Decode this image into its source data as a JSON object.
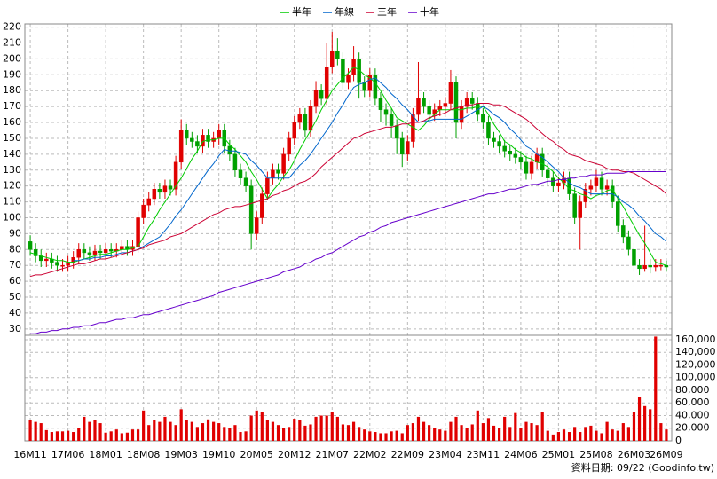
{
  "chart_data": [
    {
      "type": "candlestick",
      "categories": [
        "16M11",
        null,
        null,
        null,
        null,
        null,
        null,
        "17M06",
        null,
        null,
        null,
        null,
        null,
        null,
        "18M01",
        null,
        null,
        null,
        null,
        null,
        null,
        "18M08",
        null,
        null,
        null,
        null,
        null,
        null,
        "19M03",
        null,
        null,
        null,
        null,
        null,
        null,
        "19M10",
        null,
        null,
        null,
        null,
        null,
        null,
        "20M05",
        null,
        null,
        null,
        null,
        null,
        null,
        "20M12",
        null,
        null,
        null,
        null,
        null,
        null,
        "21M07",
        null,
        null,
        null,
        null,
        null,
        null,
        "22M02",
        null,
        null,
        null,
        null,
        null,
        null,
        "22M09",
        null,
        null,
        null,
        null,
        null,
        null,
        "23M04",
        null,
        null,
        null,
        null,
        null,
        null,
        "23M11",
        null,
        null,
        null,
        null,
        null,
        null,
        "24M06",
        null,
        null,
        null,
        null,
        null,
        null,
        "25M01",
        null,
        null,
        null,
        null,
        null,
        null,
        "25M08",
        null,
        null,
        null,
        null,
        null,
        null,
        "26M03",
        null,
        null,
        null,
        null,
        null,
        "26M09"
      ],
      "open": [
        85,
        80,
        76,
        73,
        74,
        72,
        70,
        70,
        72,
        75,
        80,
        78,
        77,
        79,
        78,
        80,
        79,
        80,
        82,
        80,
        82,
        100,
        108,
        112,
        118,
        116,
        120,
        118,
        135,
        155,
        150,
        148,
        145,
        152,
        148,
        150,
        155,
        145,
        140,
        130,
        125,
        120,
        90,
        100,
        115,
        125,
        130,
        128,
        140,
        150,
        160,
        165,
        155,
        170,
        180,
        175,
        195,
        205,
        200,
        185,
        190,
        200,
        185,
        180,
        190,
        175,
        168,
        165,
        158,
        150,
        140,
        148,
        165,
        175,
        170,
        165,
        168,
        170,
        172,
        185,
        160,
        170,
        175,
        172,
        165,
        160,
        150,
        148,
        145,
        142,
        140,
        138,
        135,
        128,
        135,
        140,
        130,
        125,
        120,
        122,
        125,
        115,
        100,
        110,
        118,
        120,
        125,
        118,
        120,
        110,
        95,
        88,
        80,
        70,
        68,
        70,
        69,
        70,
        70
      ],
      "high": [
        89,
        84,
        80,
        78,
        78,
        76,
        74,
        76,
        79,
        84,
        84,
        82,
        83,
        83,
        84,
        84,
        84,
        86,
        86,
        86,
        104,
        112,
        116,
        122,
        122,
        124,
        124,
        139,
        162,
        159,
        154,
        152,
        156,
        156,
        154,
        159,
        159,
        149,
        144,
        134,
        129,
        124,
        104,
        119,
        129,
        134,
        134,
        144,
        154,
        164,
        169,
        169,
        174,
        186,
        184,
        210,
        217,
        213,
        204,
        194,
        208,
        204,
        189,
        194,
        194,
        179,
        172,
        169,
        162,
        154,
        152,
        169,
        198,
        179,
        174,
        172,
        174,
        176,
        193,
        189,
        174,
        179,
        179,
        176,
        169,
        164,
        154,
        152,
        149,
        146,
        144,
        142,
        139,
        139,
        144,
        144,
        134,
        129,
        126,
        129,
        129,
        119,
        114,
        122,
        124,
        130,
        129,
        124,
        124,
        114,
        99,
        92,
        84,
        74,
        95,
        74,
        74,
        74,
        73
      ],
      "low": [
        76,
        72,
        69,
        69,
        68,
        66,
        66,
        66,
        68,
        71,
        74,
        73,
        73,
        74,
        74,
        75,
        75,
        76,
        76,
        76,
        78,
        96,
        104,
        108,
        112,
        112,
        114,
        114,
        131,
        146,
        144,
        141,
        141,
        144,
        144,
        146,
        141,
        136,
        126,
        121,
        116,
        80,
        86,
        96,
        111,
        121,
        124,
        124,
        136,
        146,
        156,
        151,
        151,
        166,
        171,
        171,
        191,
        196,
        181,
        181,
        186,
        175,
        176,
        176,
        171,
        160,
        158,
        150,
        140,
        132,
        136,
        144,
        161,
        166,
        161,
        161,
        164,
        166,
        168,
        150,
        156,
        166,
        168,
        161,
        156,
        146,
        144,
        141,
        138,
        136,
        134,
        131,
        124,
        124,
        131,
        126,
        121,
        116,
        116,
        118,
        111,
        96,
        80,
        106,
        114,
        116,
        114,
        114,
        106,
        91,
        84,
        76,
        66,
        64,
        66,
        65,
        66,
        67,
        66
      ],
      "close": [
        80,
        76,
        73,
        74,
        72,
        70,
        70,
        72,
        75,
        80,
        78,
        77,
        79,
        78,
        80,
        79,
        80,
        82,
        80,
        82,
        100,
        108,
        112,
        118,
        116,
        120,
        118,
        135,
        155,
        150,
        148,
        145,
        152,
        148,
        150,
        155,
        145,
        140,
        130,
        125,
        120,
        90,
        100,
        115,
        125,
        130,
        128,
        140,
        150,
        160,
        165,
        155,
        170,
        180,
        175,
        195,
        205,
        200,
        185,
        190,
        200,
        185,
        180,
        190,
        175,
        168,
        165,
        158,
        150,
        140,
        148,
        165,
        175,
        170,
        165,
        168,
        170,
        172,
        185,
        160,
        170,
        175,
        172,
        165,
        160,
        150,
        148,
        145,
        142,
        140,
        138,
        135,
        128,
        135,
        140,
        130,
        125,
        120,
        122,
        125,
        115,
        100,
        110,
        118,
        120,
        125,
        118,
        120,
        110,
        95,
        88,
        80,
        70,
        68,
        70,
        69,
        70,
        70,
        69
      ],
      "up_color": "#e00000",
      "down_color": "#00a000",
      "series": [
        {
          "name": "半年",
          "color": "#00cc00",
          "values": [
            78,
            77,
            76,
            75,
            74,
            73,
            73,
            72,
            72,
            73,
            74,
            75,
            76,
            77,
            77,
            78,
            79,
            80,
            80,
            81,
            82,
            88,
            94,
            99,
            105,
            110,
            115,
            120,
            125,
            131,
            137,
            142,
            148,
            149,
            149,
            150,
            150,
            146,
            143,
            139,
            135,
            129,
            124,
            118,
            112,
            117,
            121,
            126,
            130,
            136,
            143,
            149,
            155,
            161,
            168,
            174,
            180,
            184,
            188,
            191,
            195,
            193,
            190,
            188,
            185,
            180,
            174,
            169,
            163,
            161,
            159,
            157,
            155,
            158,
            162,
            165,
            168,
            168,
            168,
            168,
            168,
            169,
            169,
            170,
            170,
            165,
            159,
            154,
            148,
            146,
            143,
            141,
            138,
            137,
            135,
            134,
            132,
            129,
            125,
            122,
            118,
            117,
            115,
            114,
            112,
            114,
            115,
            117,
            118,
            112,
            107,
            101,
            95,
            89,
            84,
            78,
            72,
            71,
            70
          ]
        },
        {
          "name": "年線",
          "color": "#0066cc",
          "values": [
            null,
            null,
            null,
            null,
            null,
            null,
            null,
            null,
            73,
            73,
            74,
            74,
            75,
            75,
            76,
            76,
            77,
            78,
            78,
            79,
            80,
            82,
            84,
            86,
            88,
            92,
            96,
            101,
            105,
            110,
            115,
            120,
            125,
            130,
            134,
            139,
            143,
            142,
            142,
            141,
            140,
            136,
            133,
            129,
            125,
            125,
            125,
            125,
            125,
            129,
            133,
            136,
            140,
            145,
            150,
            155,
            160,
            166,
            171,
            177,
            182,
            184,
            185,
            187,
            188,
            185,
            182,
            178,
            175,
            171,
            168,
            164,
            160,
            161,
            161,
            162,
            162,
            162,
            162,
            162,
            162,
            164,
            166,
            168,
            170,
            168,
            165,
            163,
            160,
            156,
            153,
            149,
            145,
            143,
            140,
            138,
            135,
            132,
            129,
            125,
            122,
            120,
            119,
            117,
            115,
            115,
            115,
            115,
            115,
            113,
            110,
            108,
            105,
            101,
            98,
            94,
            90,
            88,
            85
          ]
        },
        {
          "name": "三年",
          "color": "#cc0033",
          "values": [
            63,
            64,
            64,
            65,
            66,
            67,
            68,
            69,
            70,
            71,
            71,
            72,
            73,
            74,
            74,
            75,
            76,
            77,
            78,
            79,
            80,
            81,
            83,
            84,
            85,
            86,
            88,
            89,
            90,
            92,
            94,
            96,
            98,
            100,
            102,
            103,
            105,
            106,
            107,
            107,
            108,
            109,
            110,
            111,
            112,
            114,
            115,
            117,
            118,
            120,
            122,
            123,
            125,
            128,
            132,
            135,
            138,
            141,
            144,
            147,
            150,
            151,
            153,
            154,
            155,
            156,
            157,
            157,
            158,
            159,
            159,
            160,
            160,
            161,
            163,
            164,
            165,
            166,
            168,
            169,
            170,
            171,
            171,
            172,
            172,
            172,
            171,
            171,
            170,
            168,
            166,
            164,
            162,
            159,
            156,
            153,
            150,
            148,
            145,
            143,
            140,
            139,
            138,
            136,
            135,
            134,
            133,
            131,
            130,
            130,
            129,
            129,
            128,
            126,
            124,
            122,
            120,
            118,
            115
          ]
        },
        {
          "name": "十年",
          "color": "#6600cc",
          "values": [
            27,
            27,
            28,
            28,
            29,
            29,
            30,
            30,
            31,
            31,
            32,
            32,
            33,
            34,
            34,
            35,
            36,
            36,
            37,
            37,
            38,
            39,
            39,
            40,
            41,
            42,
            43,
            44,
            45,
            46,
            47,
            48,
            49,
            50,
            51,
            53,
            54,
            55,
            56,
            57,
            58,
            59,
            60,
            61,
            62,
            63,
            64,
            66,
            67,
            68,
            69,
            71,
            72,
            74,
            75,
            77,
            78,
            80,
            82,
            84,
            86,
            88,
            89,
            91,
            92,
            94,
            95,
            97,
            98,
            99,
            100,
            101,
            102,
            103,
            104,
            105,
            106,
            107,
            108,
            109,
            110,
            111,
            112,
            113,
            114,
            115,
            115,
            116,
            117,
            118,
            118,
            119,
            120,
            121,
            121,
            122,
            123,
            123,
            124,
            124,
            125,
            125,
            126,
            126,
            127,
            127,
            127,
            128,
            128,
            128,
            128,
            129,
            129,
            129,
            129,
            129,
            129,
            129,
            129
          ]
        }
      ],
      "ylim": [
        26,
        222
      ],
      "yticks": [
        30,
        40,
        50,
        60,
        70,
        80,
        90,
        100,
        110,
        120,
        130,
        140,
        150,
        160,
        170,
        180,
        190,
        200,
        210,
        220
      ],
      "grid": true,
      "legend": "top"
    },
    {
      "type": "bar",
      "color": "#e00000",
      "values": [
        33000,
        30000,
        28000,
        17000,
        14000,
        15000,
        15000,
        16000,
        14000,
        20000,
        38000,
        30000,
        33000,
        28000,
        13000,
        15000,
        18000,
        12000,
        13000,
        18000,
        18000,
        48000,
        25000,
        33000,
        30000,
        38000,
        30000,
        25000,
        50000,
        33000,
        30000,
        22000,
        28000,
        34000,
        30000,
        28000,
        22000,
        20000,
        25000,
        14000,
        15000,
        40000,
        48000,
        45000,
        33000,
        30000,
        25000,
        20000,
        22000,
        35000,
        33000,
        24000,
        26000,
        38000,
        40000,
        40000,
        45000,
        38000,
        26000,
        25000,
        30000,
        22000,
        18000,
        15000,
        14000,
        12000,
        12000,
        15000,
        16000,
        12000,
        25000,
        28000,
        38000,
        30000,
        25000,
        20000,
        18000,
        16000,
        30000,
        38000,
        25000,
        20000,
        26000,
        48000,
        28000,
        36000,
        24000,
        20000,
        38000,
        22000,
        44000,
        20000,
        30000,
        28000,
        25000,
        45000,
        16000,
        10000,
        14000,
        18000,
        14000,
        22000,
        14000,
        22000,
        24000,
        16000,
        12000,
        30000,
        18000,
        16000,
        28000,
        22000,
        45000,
        70000,
        55000,
        50000,
        165000,
        28000,
        18000
      ],
      "ylim": [
        0,
        167000
      ],
      "yticks": [
        0,
        {
          "value": 20000,
          "label": "20,000"
        },
        {
          "value": 40000,
          "label": "40,000"
        },
        {
          "value": 60000,
          "label": "60,000"
        },
        {
          "value": 80000,
          "label": "80,000"
        },
        {
          "value": 100000,
          "label": "100,000"
        },
        {
          "value": 120000,
          "label": "120,000"
        },
        {
          "value": 140000,
          "label": "140,000"
        },
        {
          "value": 160000,
          "label": "160,000"
        }
      ],
      "grid": true
    }
  ],
  "footer": "資料日期: 09/22 (Goodinfo.tw)"
}
